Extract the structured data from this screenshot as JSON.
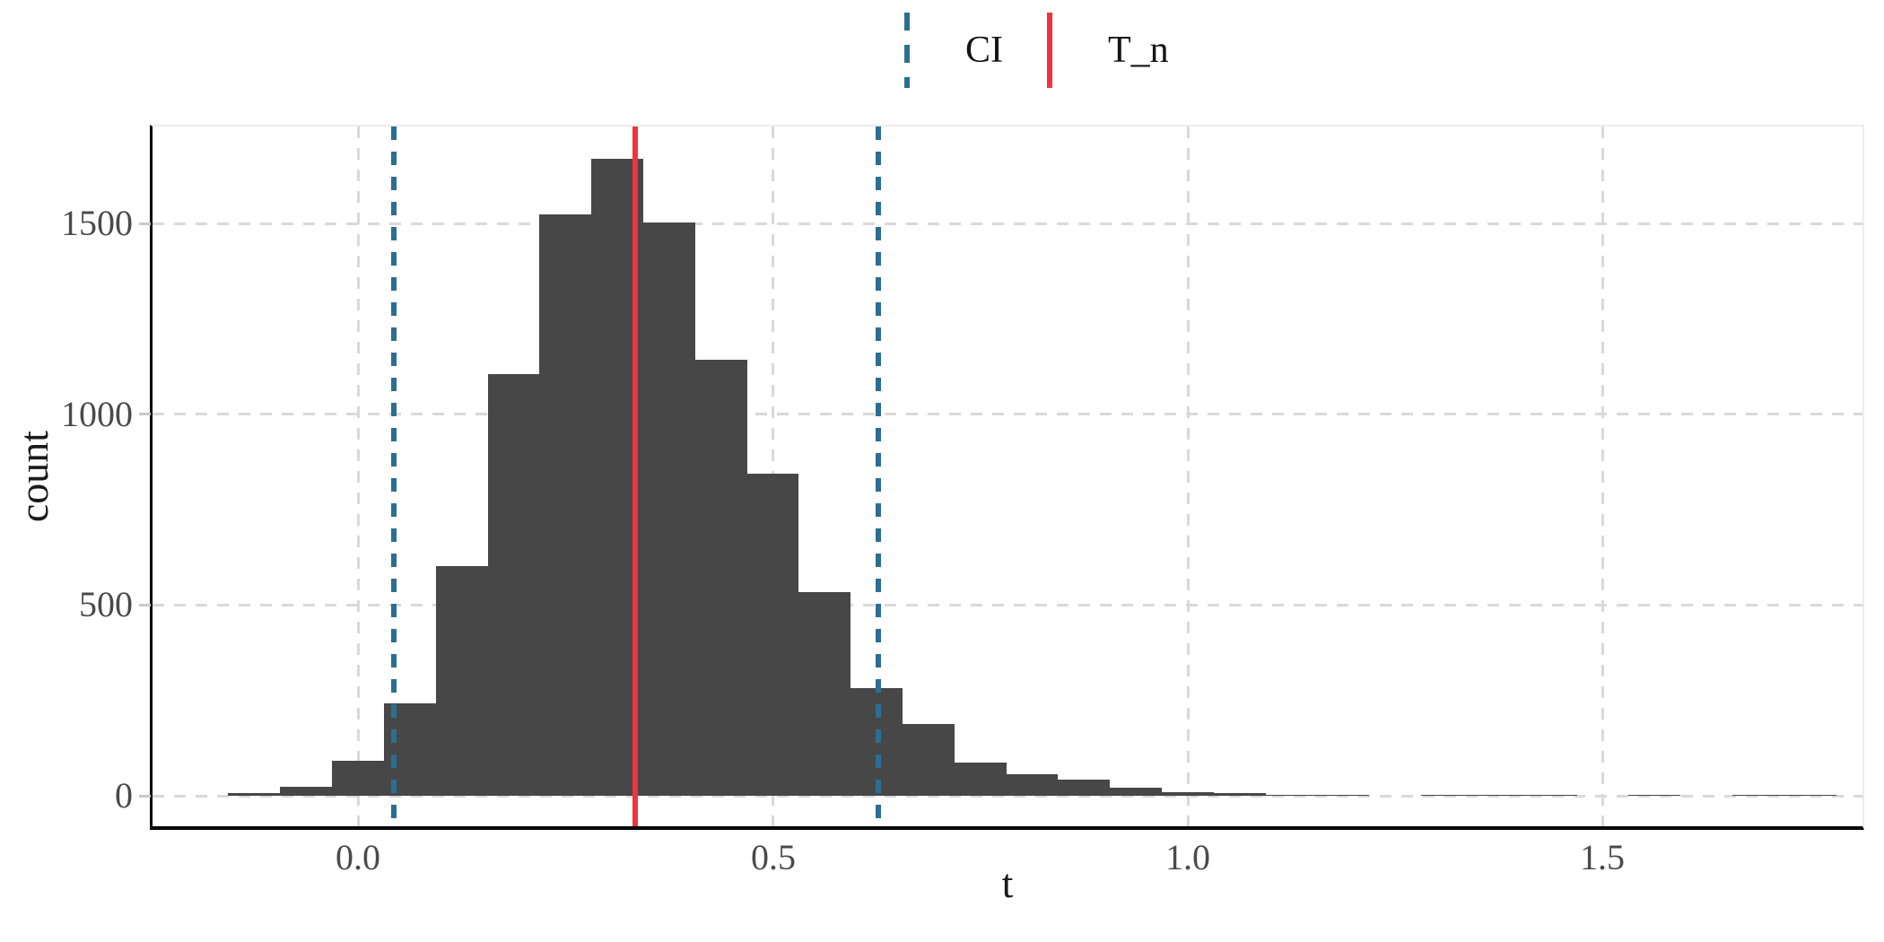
{
  "legend": {
    "items": [
      {
        "label": "CI",
        "color": "#2C6E91",
        "line_style": "dashed"
      },
      {
        "label": "T_n",
        "color": "#F2333E",
        "line_style": "solid"
      }
    ]
  },
  "axes": {
    "x": {
      "title": "t",
      "tick_labels": [
        "0.0",
        "0.5",
        "1.0",
        "1.5"
      ]
    },
    "y": {
      "title": "count",
      "tick_labels": [
        "0",
        "500",
        "1000",
        "1500"
      ]
    }
  },
  "chart_data": {
    "type": "bar",
    "subtype": "histogram",
    "title": "",
    "xlabel": "t",
    "ylabel": "count",
    "legend_position": "top-center",
    "grid": "dashed major gridlines, light gray, on white background",
    "bar_color": "#474747",
    "xlim": [
      -0.248,
      1.813
    ],
    "ylim": [
      0,
      1754
    ],
    "x_tick_values": [
      0,
      0.5,
      1.0,
      1.5
    ],
    "y_tick_values": [
      0,
      500,
      1000,
      1500
    ],
    "bin_width": 0.0625,
    "bins": [
      {
        "center": -0.125,
        "count": 6
      },
      {
        "center": -0.0625,
        "count": 24
      },
      {
        "center": 0.0,
        "count": 91
      },
      {
        "center": 0.0625,
        "count": 242
      },
      {
        "center": 0.125,
        "count": 601
      },
      {
        "center": 0.1875,
        "count": 1106
      },
      {
        "center": 0.25,
        "count": 1524
      },
      {
        "center": 0.3125,
        "count": 1669
      },
      {
        "center": 0.375,
        "count": 1503
      },
      {
        "center": 0.4375,
        "count": 1143
      },
      {
        "center": 0.5,
        "count": 845
      },
      {
        "center": 0.5625,
        "count": 533
      },
      {
        "center": 0.625,
        "count": 281
      },
      {
        "center": 0.6875,
        "count": 189
      },
      {
        "center": 0.75,
        "count": 88
      },
      {
        "center": 0.8125,
        "count": 56
      },
      {
        "center": 0.875,
        "count": 42
      },
      {
        "center": 0.9375,
        "count": 20
      },
      {
        "center": 1.0,
        "count": 10
      },
      {
        "center": 1.0625,
        "count": 6
      },
      {
        "center": 1.125,
        "count": 3
      },
      {
        "center": 1.1875,
        "count": 2
      },
      {
        "center": 1.25,
        "count": 0
      },
      {
        "center": 1.3125,
        "count": 2
      },
      {
        "center": 1.375,
        "count": 1
      },
      {
        "center": 1.4375,
        "count": 1
      },
      {
        "center": 1.5,
        "count": 0
      },
      {
        "center": 1.5625,
        "count": 1
      },
      {
        "center": 1.625,
        "count": 0
      },
      {
        "center": 1.6875,
        "count": 2
      },
      {
        "center": 1.75,
        "count": 1
      }
    ],
    "vlines": [
      {
        "name": "CI_lower",
        "x": 0.043,
        "color": "#2C6E91",
        "style": "dashed"
      },
      {
        "name": "CI_upper",
        "x": 0.627,
        "color": "#2C6E91",
        "style": "dashed"
      },
      {
        "name": "T_n",
        "x": 0.334,
        "color": "#F2333E",
        "style": "solid"
      }
    ]
  }
}
